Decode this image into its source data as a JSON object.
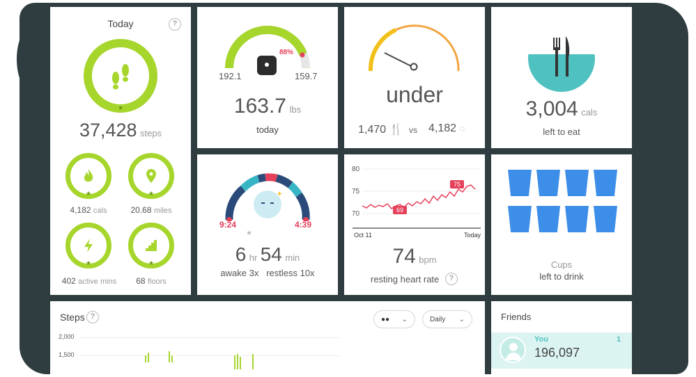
{
  "today": {
    "title": "Today",
    "help": "?",
    "steps_value": "37,428",
    "steps_unit": "steps",
    "cals_value": "4,182",
    "cals_unit": "cals",
    "miles_value": "20.68",
    "miles_unit": "miles",
    "active_value": "402",
    "active_unit": "active mins",
    "floors_value": "68",
    "floors_unit": "floors"
  },
  "weight": {
    "percent": "88%",
    "start": "192.1",
    "goal": "159.7",
    "value": "163.7",
    "unit": "lbs",
    "label": "today",
    "progress": 0.88
  },
  "calorie_balance": {
    "status": "under",
    "eaten": "1,470",
    "vs": "vs",
    "burned": "4,182"
  },
  "food": {
    "value": "3,004",
    "unit": "cals",
    "label": "left to eat"
  },
  "sleep": {
    "bed_time": "9:24",
    "wake_time": "4:39",
    "hours": "6",
    "hours_unit": "hr",
    "minutes": "54",
    "minutes_unit": "min",
    "awake": "awake 3x",
    "restless": "restless 10x"
  },
  "heart": {
    "y_ticks": [
      "80",
      "75",
      "70"
    ],
    "x_start": "Oct 11",
    "x_end": "Today",
    "badge_low": "69",
    "badge_high": "75",
    "value": "74",
    "unit": "bpm",
    "label": "resting heart rate",
    "help": "?"
  },
  "water": {
    "cups_label": "Cups",
    "label": "left to drink",
    "cups_count": 8
  },
  "steps_chart": {
    "title": "Steps",
    "help": "?",
    "dropdown_period": "Daily",
    "y_ticks": [
      "2,000",
      "1,500"
    ]
  },
  "friends": {
    "title": "Friends",
    "name": "You",
    "rank": "1",
    "steps": "196,097"
  },
  "colors": {
    "green": "#a6d52c",
    "teal": "#4fc1c1",
    "red": "#e5405a",
    "blue": "#3d8ee8",
    "backdrop": "#2f3d40"
  }
}
